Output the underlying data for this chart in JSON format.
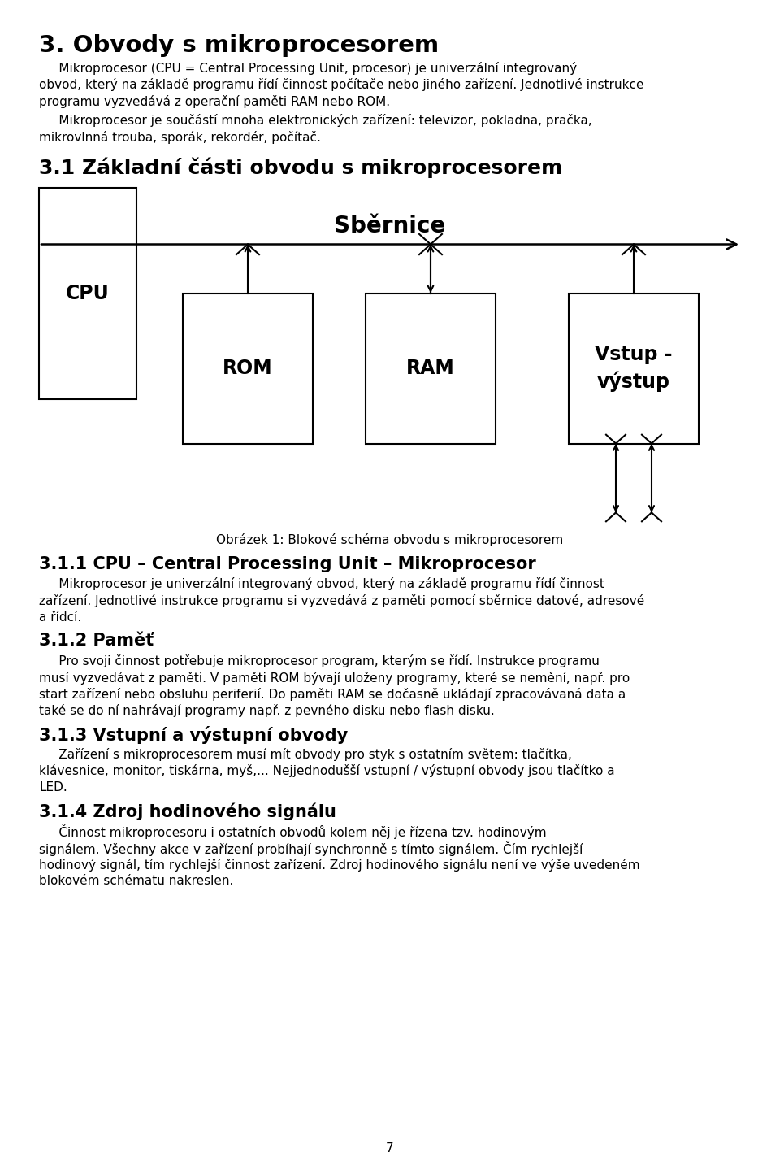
{
  "bg_color": "#ffffff",
  "text_color": "#000000",
  "page_number": "7",
  "heading1": "3. Obvody s mikroprocesorem",
  "heading2": "3.1 Základní části obvodu s mikroprocesorem",
  "diagram_label_sbernice": "Sběrnice",
  "diagram_label_cpu": "CPU",
  "diagram_label_rom": "ROM",
  "diagram_label_ram": "RAM",
  "diagram_label_vstup": "Vstup -\nvýstup",
  "caption": "Obrázek 1: Blokové schéma obvodu s mikroprocesorem",
  "heading3": "3.1.1 CPU – Central Processing Unit – Mikroprocesor",
  "heading4": "3.1.2 Paměť",
  "heading5": "3.1.3 Vstupní a výstupní obvody",
  "heading6": "3.1.4 Zdroj hodinového signálu",
  "para1_lines": [
    "     Mikroprocesor (CPU = Central Processing Unit, procesor) je univerzální integrovaný",
    "obvod, který na základě programu řídí činnost počítače nebo jiného zařízení. Jednotlivé instrukce",
    "programu vyzvedává z operační paměti RAM nebo ROM."
  ],
  "para2_lines": [
    "     Mikroprocesor je součástí mnoha elektronických zařízení: televizor, pokladna, pračka,",
    "mikrovlnná trouba, sporák, rekordér, počítač."
  ],
  "para3_lines": [
    "     Mikroprocesor je univerzální integrovaný obvod, který na základě programu řídí činnost",
    "zařízení. Jednotlivé instrukce programu si vyzvedává z paměti pomocí sběrnice datové, adresové",
    "a řídcí."
  ],
  "para4_lines": [
    "     Pro svoji činnost potřebuje mikroprocesor program, kterým se řídí. Instrukce programu",
    "musí vyzvedávat z paměti. V paměti ROM bývají uloženy programy, které se nemění, např. pro",
    "start zařízení nebo obsluhu periferií. Do paměti RAM se dočasně ukládají zpracovávaná data a",
    "také se do ní nahrávají programy např. z pevného disku nebo flash disku."
  ],
  "para5_lines": [
    "     Zařízení s mikroprocesorem musí mít obvody pro styk s ostatním světem: tlačítka,",
    "klávesnice, monitor, tiskárna, myš,... Nejjednodušší vstupní / výstupní obvody jsou tlačítko a",
    "LED."
  ],
  "para6_lines": [
    "     Činnost mikroprocesoru i ostatních obvodů kolem něj je řízena tzv. hodinovým",
    "signálem. Všechny akce v zařízení probíhají synchronně s tímto signálem. Čím rychlejší",
    "hodinový signál, tím rychlejší činnost zařízení. Zdroj hodinového signálu není ve výše uvedeném",
    "blokovém schématu nakreslen."
  ]
}
